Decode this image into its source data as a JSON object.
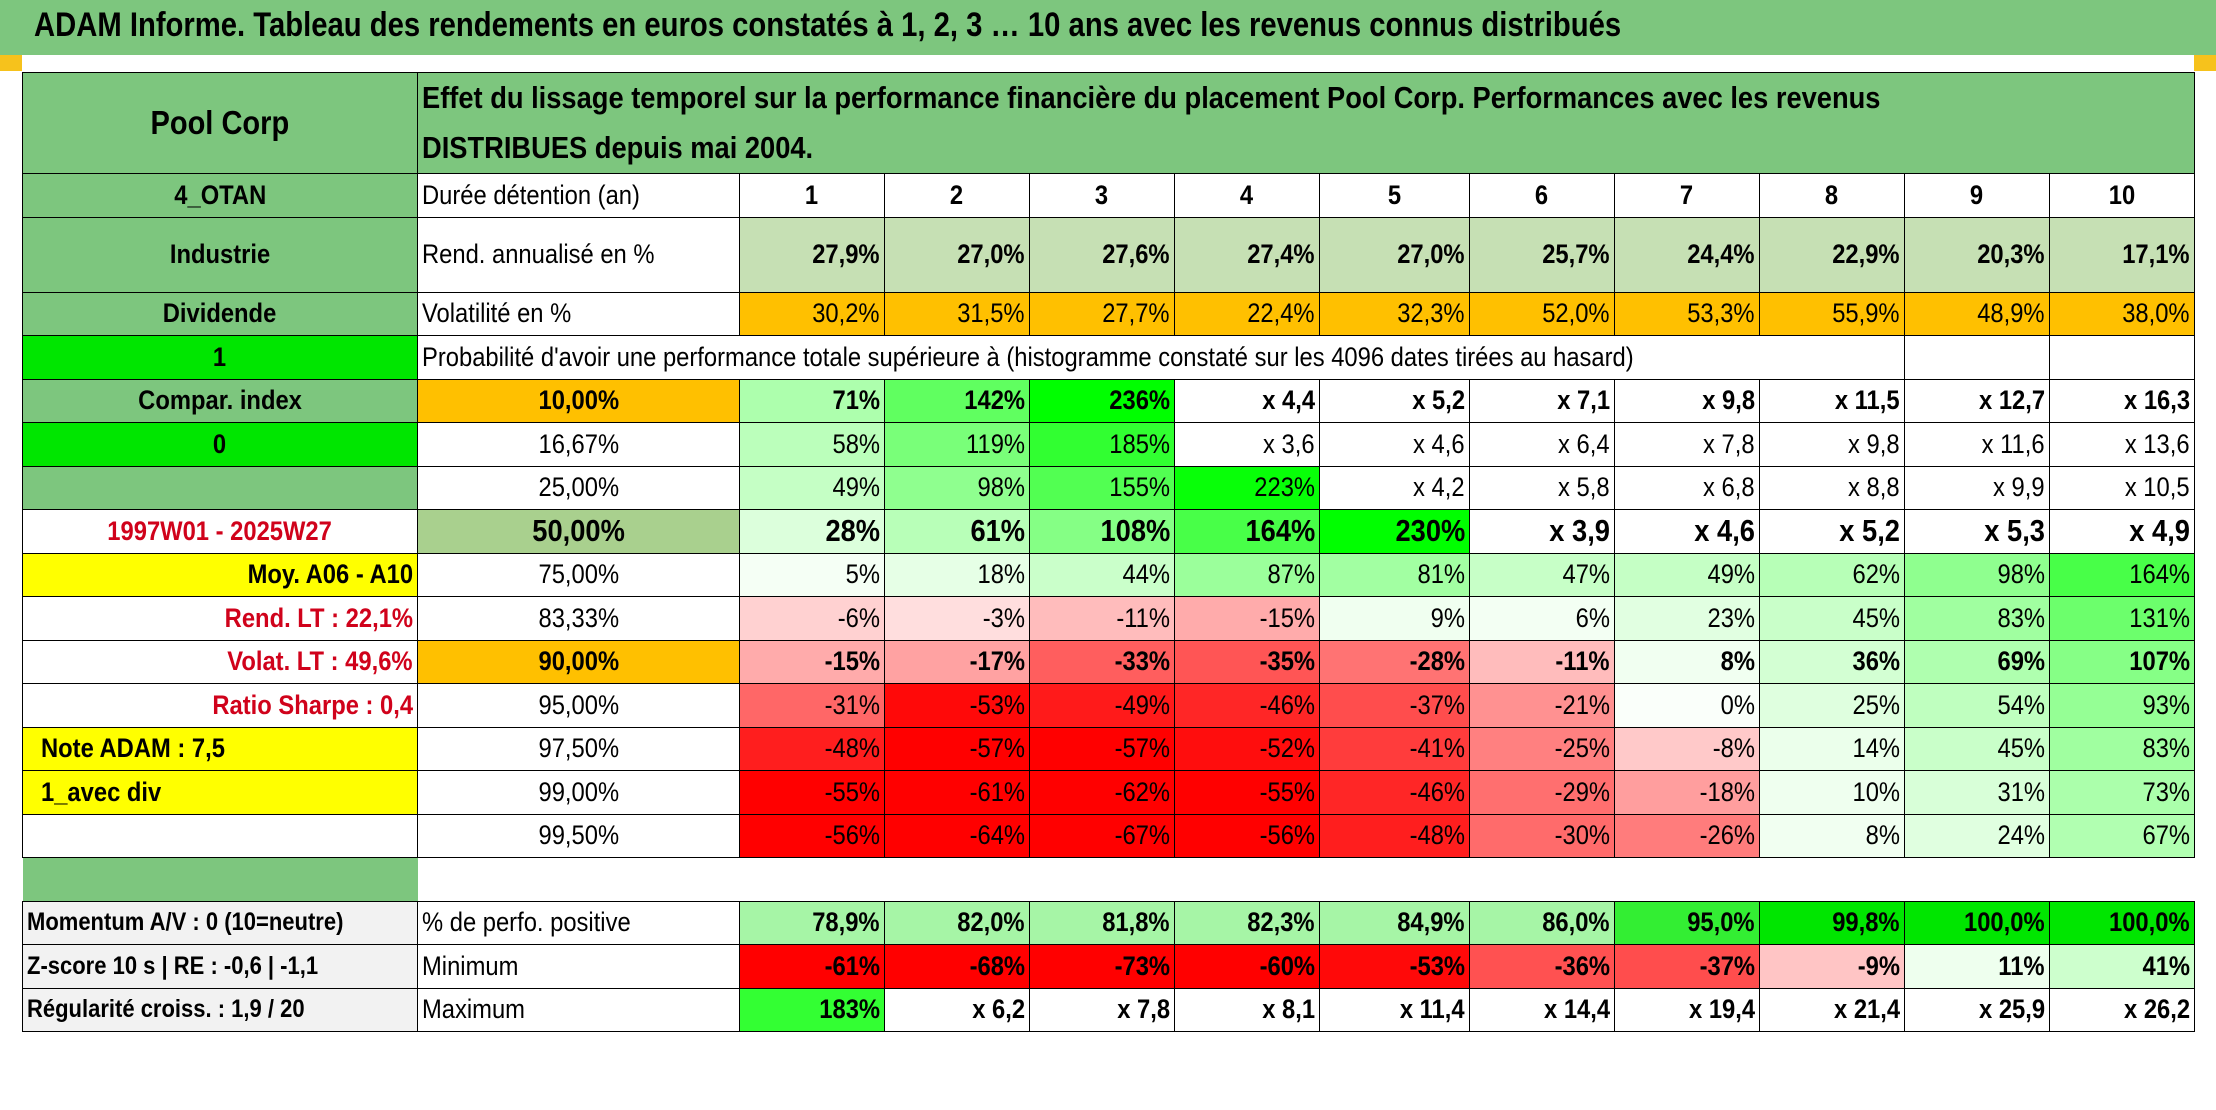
{
  "title": "ADAM Informe. Tableau des rendements en euros constatés à 1, 2, 3 … 10 ans avec les revenus connus distribués",
  "colors": {
    "header_green": "#7dc67e",
    "bright_green": "#00e600",
    "yellow": "#ffff00",
    "orange": "#ffc000",
    "red_text": "#d0021b"
  },
  "side": {
    "name": "Pool Corp",
    "code": "4_OTAN",
    "sector": "Industrie",
    "type": "Dividende",
    "flag1": "1",
    "compar": "Compar. index",
    "flag2": "0",
    "period": "1997W01 - 2025W27",
    "moy": "Moy. A06 - A10",
    "rend_lt": "Rend. LT :   22,1%",
    "volat_lt": "Volat. LT :   49,6%",
    "sharpe": "Ratio Sharpe :    0,4",
    "note": "Note ADAM : 7,5",
    "mode": "1_avec div",
    "momentum": "Momentum A/V : 0 (10=neutre)",
    "zscore": "Z-score 10 s | RE : -0,6 | -1,1",
    "regularite": "Régularité croiss. : 1,9 / 20"
  },
  "header_text": "Effet du lissage temporel sur la performance financière du placement Pool Corp. Performances avec les revenus DISTRIBUES depuis mai 2004.",
  "duration_label": "Durée détention (an)",
  "years": [
    "1",
    "2",
    "3",
    "4",
    "5",
    "6",
    "7",
    "8",
    "9",
    "10"
  ],
  "rend_label": "Rend. annualisé en %",
  "rend": [
    "27,9%",
    "27,0%",
    "27,6%",
    "27,4%",
    "27,0%",
    "25,7%",
    "24,4%",
    "22,9%",
    "20,3%",
    "17,1%"
  ],
  "vol_label": "Volatilité en %",
  "vol": [
    "30,2%",
    "31,5%",
    "27,7%",
    "22,4%",
    "32,3%",
    "52,0%",
    "53,3%",
    "55,9%",
    "48,9%",
    "38,0%"
  ],
  "prob_label": "Probabilité d'avoir une performance totale supérieure à (histogramme constaté sur les 4096 dates tirées au hasard)",
  "percentile_rows": [
    {
      "p": "10,00%",
      "v": [
        "71%",
        "142%",
        "236%",
        "x 4,4",
        "x 5,2",
        "x 7,1",
        "x 9,8",
        "x 11,5",
        "x 12,7",
        "x 16,3"
      ]
    },
    {
      "p": "16,67%",
      "v": [
        "58%",
        "119%",
        "185%",
        "x 3,6",
        "x 4,6",
        "x 6,4",
        "x 7,8",
        "x 9,8",
        "x 11,6",
        "x 13,6"
      ]
    },
    {
      "p": "25,00%",
      "v": [
        "49%",
        "98%",
        "155%",
        "223%",
        "x 4,2",
        "x 5,8",
        "x 6,8",
        "x 8,8",
        "x 9,9",
        "x 10,5"
      ]
    },
    {
      "p": "50,00%",
      "v": [
        "28%",
        "61%",
        "108%",
        "164%",
        "230%",
        "x 3,9",
        "x 4,6",
        "x 5,2",
        "x 5,3",
        "x 4,9"
      ]
    },
    {
      "p": "75,00%",
      "v": [
        "5%",
        "18%",
        "44%",
        "87%",
        "81%",
        "47%",
        "49%",
        "62%",
        "98%",
        "164%"
      ]
    },
    {
      "p": "83,33%",
      "v": [
        "-6%",
        "-3%",
        "-11%",
        "-15%",
        "9%",
        "6%",
        "23%",
        "45%",
        "83%",
        "131%"
      ]
    },
    {
      "p": "90,00%",
      "v": [
        "-15%",
        "-17%",
        "-33%",
        "-35%",
        "-28%",
        "-11%",
        "8%",
        "36%",
        "69%",
        "107%"
      ]
    },
    {
      "p": "95,00%",
      "v": [
        "-31%",
        "-53%",
        "-49%",
        "-46%",
        "-37%",
        "-21%",
        "0%",
        "25%",
        "54%",
        "93%"
      ]
    },
    {
      "p": "97,50%",
      "v": [
        "-48%",
        "-57%",
        "-57%",
        "-52%",
        "-41%",
        "-25%",
        "-8%",
        "14%",
        "45%",
        "83%"
      ]
    },
    {
      "p": "99,00%",
      "v": [
        "-55%",
        "-61%",
        "-62%",
        "-55%",
        "-46%",
        "-29%",
        "-18%",
        "10%",
        "31%",
        "73%"
      ]
    },
    {
      "p": "99,50%",
      "v": [
        "-56%",
        "-64%",
        "-67%",
        "-56%",
        "-48%",
        "-30%",
        "-26%",
        "8%",
        "24%",
        "67%"
      ]
    }
  ],
  "pos_label": "% de perfo. positive",
  "pos": [
    "78,9%",
    "82,0%",
    "81,8%",
    "82,3%",
    "84,9%",
    "86,0%",
    "95,0%",
    "99,8%",
    "100,0%",
    "100,0%"
  ],
  "min_label": "Minimum",
  "min": [
    "-61%",
    "-68%",
    "-73%",
    "-60%",
    "-53%",
    "-36%",
    "-37%",
    "-9%",
    "11%",
    "41%"
  ],
  "max_label": "Maximum",
  "max": [
    "183%",
    "x 6,2",
    "x 7,8",
    "x 8,1",
    "x 11,4",
    "x 14,4",
    "x 19,4",
    "x 21,4",
    "x 25,9",
    "x 26,2"
  ]
}
